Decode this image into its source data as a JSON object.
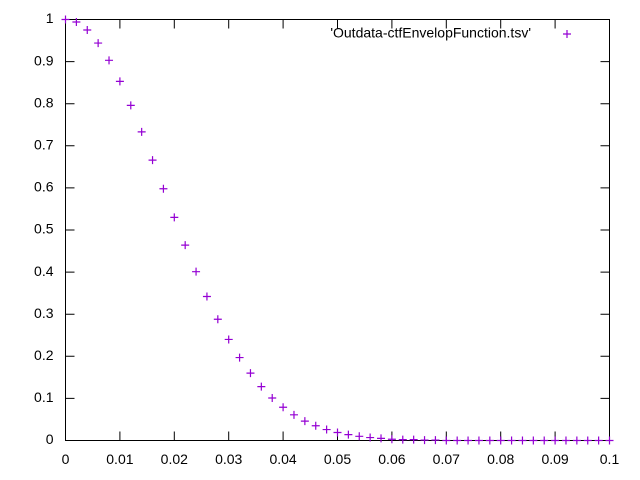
{
  "chart_data": {
    "type": "scatter",
    "x": [
      0,
      0.002,
      0.004,
      0.006,
      0.008,
      0.01,
      0.012,
      0.014,
      0.016,
      0.018,
      0.02,
      0.022,
      0.024,
      0.026,
      0.028,
      0.03,
      0.032,
      0.034,
      0.036,
      0.038,
      0.04,
      0.042,
      0.044,
      0.046,
      0.048,
      0.05,
      0.052,
      0.054,
      0.056,
      0.058,
      0.06,
      0.062,
      0.064,
      0.066,
      0.068,
      0.07,
      0.072,
      0.074,
      0.076,
      0.078,
      0.08,
      0.082,
      0.084,
      0.086,
      0.088,
      0.09,
      0.092,
      0.094,
      0.096,
      0.098,
      0.1
    ],
    "series": [
      {
        "name": "'Outdata-ctfEnvelopFunction.tsv'",
        "color": "#9400d3",
        "values": [
          1,
          0.994,
          0.975,
          0.944,
          0.903,
          0.853,
          0.796,
          0.733,
          0.666,
          0.598,
          0.53,
          0.464,
          0.401,
          0.342,
          0.288,
          0.24,
          0.197,
          0.16,
          0.128,
          0.101,
          0.079,
          0.061,
          0.046,
          0.035,
          0.026,
          0.019,
          0.014,
          0.01,
          0.007,
          0.005,
          0.003,
          0.002,
          0.002,
          0.001,
          0.001,
          0,
          0,
          0,
          0,
          0,
          0,
          0,
          0,
          0,
          0,
          0,
          0,
          0,
          0,
          0,
          0
        ]
      }
    ],
    "xlim": [
      0,
      0.1
    ],
    "ylim": [
      0,
      1
    ],
    "xticks": [
      0,
      0.01,
      0.02,
      0.03,
      0.04,
      0.05,
      0.06,
      0.07,
      0.08,
      0.09,
      0.1
    ],
    "yticks": [
      0,
      0.1,
      0.2,
      0.3,
      0.4,
      0.5,
      0.6,
      0.7,
      0.8,
      0.9,
      1
    ],
    "legend": "top-right"
  }
}
